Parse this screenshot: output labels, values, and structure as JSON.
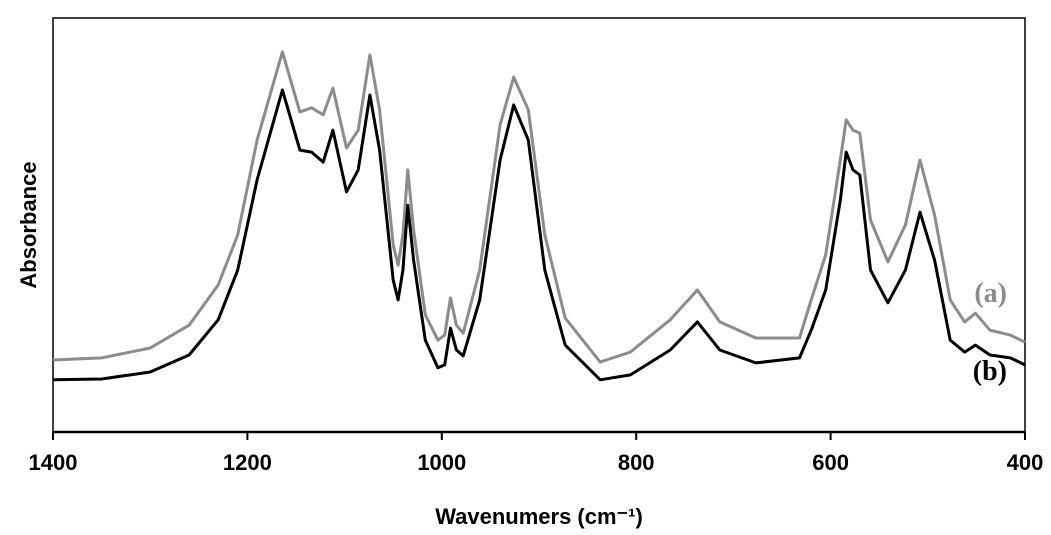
{
  "chart_data": {
    "type": "line",
    "x_label": "Wavenumers (cm⁻¹)",
    "y_label": "Absorbance",
    "xlim": [
      1400,
      400
    ],
    "xticks": [
      1400,
      1200,
      1000,
      800,
      600,
      400
    ],
    "ylim": [
      0,
      1
    ],
    "x": [
      1400,
      1350,
      1300,
      1260,
      1230,
      1210,
      1190,
      1164,
      1146,
      1134,
      1122,
      1112,
      1098,
      1086,
      1074,
      1064,
      1050,
      1045,
      1040,
      1035,
      1029,
      1017,
      1004,
      997,
      991,
      985,
      978,
      961,
      940,
      926,
      911,
      894,
      873,
      837,
      806,
      765,
      737,
      714,
      677,
      632,
      620,
      605,
      590,
      584,
      577,
      570,
      559,
      541,
      523,
      508,
      493,
      477,
      462,
      451,
      436,
      415,
      400
    ],
    "series": [
      {
        "name": "(a)",
        "color": "#8c8c8c",
        "values": [
          0.174,
          0.179,
          0.203,
          0.258,
          0.355,
          0.476,
          0.705,
          0.918,
          0.773,
          0.783,
          0.766,
          0.831,
          0.686,
          0.729,
          0.911,
          0.778,
          0.452,
          0.403,
          0.476,
          0.633,
          0.488,
          0.283,
          0.222,
          0.234,
          0.324,
          0.258,
          0.239,
          0.391,
          0.742,
          0.857,
          0.778,
          0.476,
          0.275,
          0.169,
          0.193,
          0.271,
          0.343,
          0.266,
          0.227,
          0.227,
          0.319,
          0.428,
          0.657,
          0.754,
          0.729,
          0.722,
          0.512,
          0.411,
          0.5,
          0.657,
          0.524,
          0.319,
          0.266,
          0.287,
          0.246,
          0.234,
          0.217
        ]
      },
      {
        "name": "(b)",
        "color": "#000000",
        "values": [
          0.126,
          0.128,
          0.145,
          0.186,
          0.271,
          0.391,
          0.609,
          0.826,
          0.681,
          0.676,
          0.652,
          0.729,
          0.58,
          0.633,
          0.814,
          0.681,
          0.367,
          0.319,
          0.391,
          0.548,
          0.415,
          0.222,
          0.155,
          0.162,
          0.251,
          0.198,
          0.184,
          0.319,
          0.657,
          0.79,
          0.705,
          0.391,
          0.21,
          0.126,
          0.138,
          0.198,
          0.266,
          0.198,
          0.167,
          0.179,
          0.246,
          0.343,
          0.56,
          0.676,
          0.633,
          0.621,
          0.391,
          0.312,
          0.391,
          0.531,
          0.415,
          0.222,
          0.193,
          0.21,
          0.186,
          0.179,
          0.162
        ]
      }
    ]
  }
}
